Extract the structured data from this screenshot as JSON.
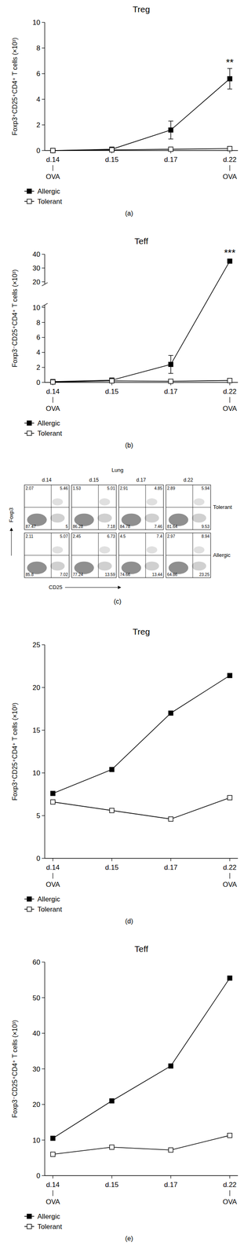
{
  "chart_data": [
    {
      "type": "line",
      "title": "Treg",
      "panel_label": "(a)",
      "y_label": "Foxp3⁺CD25⁺CD4⁺ T cells (×10³)",
      "categories": [
        "d.14",
        "d.15",
        "d.17",
        "d.22"
      ],
      "ylim": [
        0,
        10
      ],
      "yticks": [
        0,
        2,
        4,
        6,
        8,
        10
      ],
      "legend": "bottom-left",
      "series": [
        {
          "name": "Allergic",
          "color": "#000000",
          "marker": "filled-square",
          "values": [
            0,
            0.1,
            1.6,
            5.6
          ],
          "errors": [
            0,
            0.05,
            0.7,
            0.8
          ]
        },
        {
          "name": "Tolerant",
          "color": "#000000",
          "marker": "open-square",
          "values": [
            0,
            0.05,
            0.1,
            0.15
          ],
          "errors": [
            0,
            0,
            0.05,
            0.05
          ]
        }
      ],
      "x_annotations": [
        {
          "x": "d.14",
          "text": "OVA"
        },
        {
          "x": "d.22",
          "text": "OVA"
        }
      ],
      "point_annotations": [
        {
          "x": "d.22",
          "series": "Allergic",
          "text": "**"
        }
      ]
    },
    {
      "type": "line",
      "title": "Teff",
      "panel_label": "(b)",
      "y_label": "Foxp3⁻CD25⁺CD4⁺ T cells (×10³)",
      "categories": [
        "d.14",
        "d.15",
        "d.17",
        "d.22"
      ],
      "ylim": [
        0,
        40
      ],
      "y_break": [
        10,
        20
      ],
      "yticks": [
        0,
        2,
        4,
        6,
        8,
        10,
        20,
        30,
        40
      ],
      "legend": "bottom-left",
      "series": [
        {
          "name": "Allergic",
          "color": "#000000",
          "marker": "filled-square",
          "values": [
            0.1,
            0.3,
            2.4,
            35
          ],
          "errors": [
            0.05,
            0.1,
            1.2,
            0.8
          ]
        },
        {
          "name": "Tolerant",
          "color": "#000000",
          "marker": "open-square",
          "values": [
            0.05,
            0.2,
            0.15,
            0.25
          ],
          "errors": [
            0,
            0.05,
            0.05,
            0.05
          ]
        }
      ],
      "x_annotations": [
        {
          "x": "d.14",
          "text": "OVA"
        },
        {
          "x": "d.22",
          "text": "OVA"
        }
      ],
      "point_annotations": [
        {
          "x": "d.22",
          "series": "Allergic",
          "text": "***"
        }
      ]
    },
    {
      "type": "line",
      "title": "Treg",
      "panel_label": "(d)",
      "y_label": "Foxp3⁺CD25⁺CD4⁺ T cells (×10³)",
      "categories": [
        "d.14",
        "d.15",
        "d.17",
        "d.22"
      ],
      "ylim": [
        0,
        25
      ],
      "yticks": [
        0,
        5,
        10,
        15,
        20,
        25
      ],
      "legend": "bottom-left",
      "series": [
        {
          "name": "Allergic",
          "color": "#000000",
          "marker": "filled-square",
          "values": [
            7.6,
            10.4,
            17,
            21.4
          ]
        },
        {
          "name": "Tolerant",
          "color": "#000000",
          "marker": "open-square",
          "values": [
            6.6,
            5.6,
            4.6,
            7.1
          ]
        }
      ],
      "x_annotations": [
        {
          "x": "d.14",
          "text": "OVA"
        },
        {
          "x": "d.22",
          "text": "OVA"
        }
      ]
    },
    {
      "type": "line",
      "title": "Teff",
      "panel_label": "(e)",
      "y_label": "Foxp3⁻CD25⁺CD4⁺ T cells (×10³)",
      "categories": [
        "d.14",
        "d.15",
        "d.17",
        "d.22"
      ],
      "ylim": [
        0,
        60
      ],
      "yticks": [
        0,
        10,
        20,
        30,
        40,
        50,
        60
      ],
      "legend": "bottom-left",
      "series": [
        {
          "name": "Allergic",
          "color": "#000000",
          "marker": "filled-square",
          "values": [
            10.5,
            21,
            30.8,
            55.5
          ]
        },
        {
          "name": "Tolerant",
          "color": "#000000",
          "marker": "open-square",
          "values": [
            6,
            8,
            7.2,
            11.3
          ]
        }
      ],
      "x_annotations": [
        {
          "x": "d.14",
          "text": "OVA"
        },
        {
          "x": "d.22",
          "text": "OVA"
        }
      ]
    }
  ],
  "flow_cytometry": {
    "title": "Lung",
    "panel_label": "(c)",
    "x_label": "CD25",
    "y_label": "Foxp3",
    "columns": [
      "d.14",
      "d.15",
      "d.17",
      "d.22"
    ],
    "rows": [
      {
        "label": "Tolerant",
        "quadrants": [
          [
            2.07,
            5.46,
            87.47,
            5
          ],
          [
            1.53,
            5.01,
            86.28,
            7.18
          ],
          [
            2.91,
            4.85,
            84.78,
            7.46
          ],
          [
            2.89,
            5.94,
            81.64,
            9.53
          ]
        ]
      },
      {
        "label": "Allergic",
        "quadrants": [
          [
            2.11,
            5.07,
            85.8,
            7.02
          ],
          [
            2.45,
            6.73,
            77.24,
            13.59
          ],
          [
            4.5,
            7.4,
            74.66,
            13.44
          ],
          [
            2.97,
            8.94,
            64.86,
            23.25
          ]
        ]
      }
    ]
  }
}
